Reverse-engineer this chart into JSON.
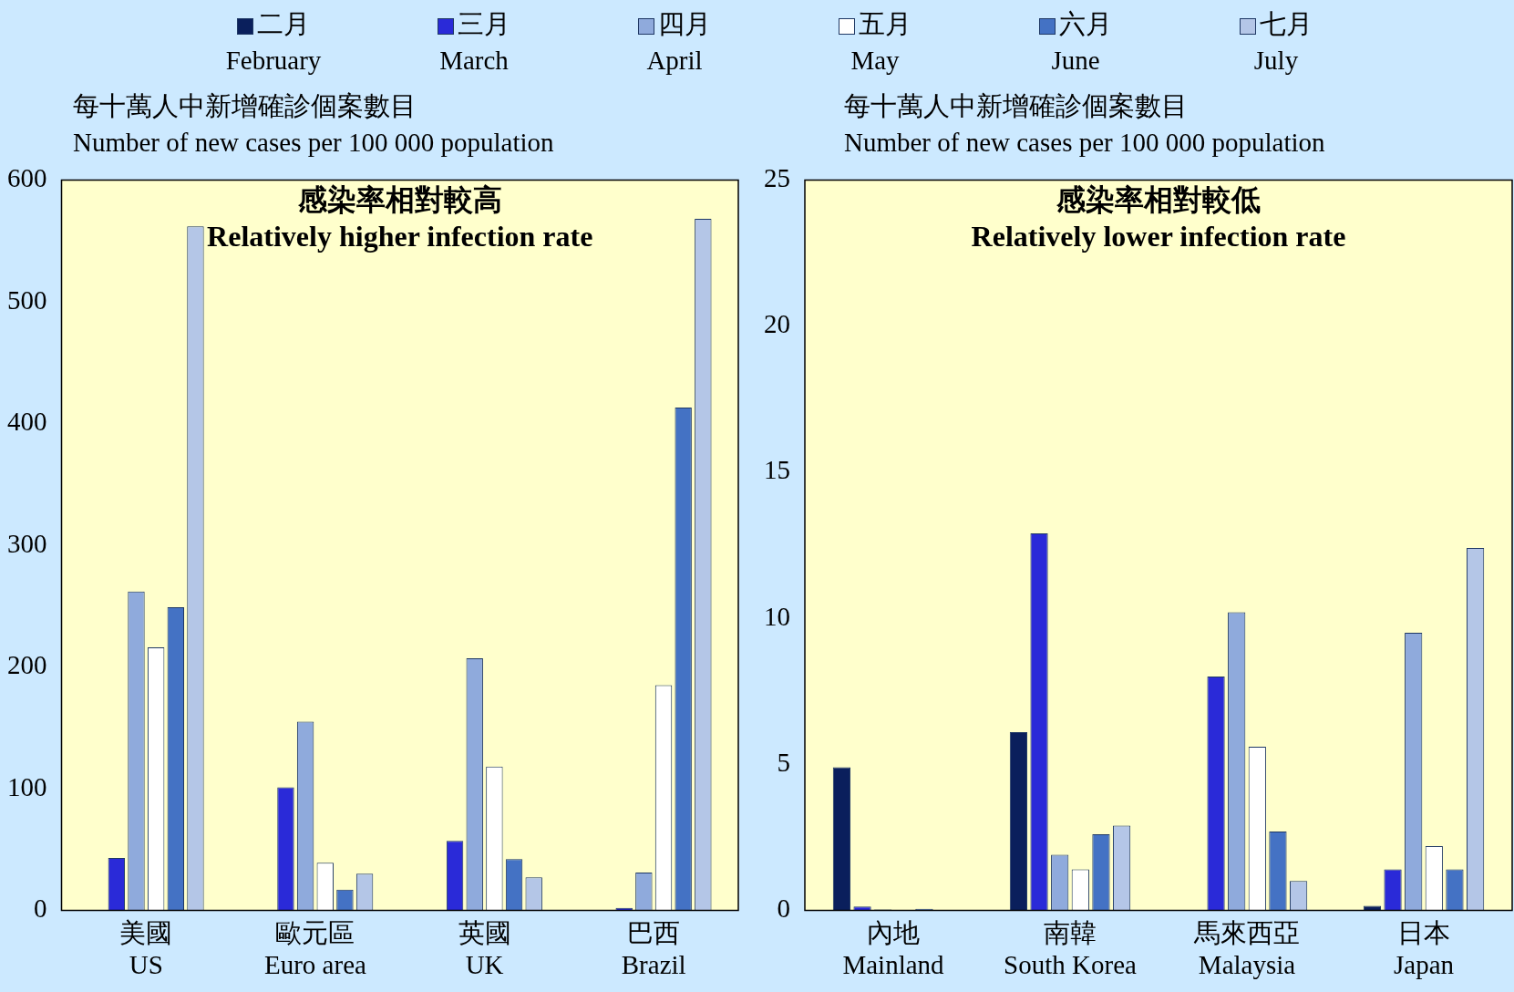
{
  "chart_data": [
    {
      "type": "bar",
      "title": "感染率相對較高\nRelatively higher infection rate",
      "ylabel": "每十萬人中新增確診個案數目\nNumber of new cases per 100 000 population",
      "categories": [
        "美國\nUS",
        "歐元區\nEuro area",
        "英國\nUK",
        "巴西\nBrazil"
      ],
      "ylim": [
        0,
        600
      ],
      "yticks": [
        0,
        100,
        200,
        300,
        400,
        500,
        600
      ],
      "grid": false,
      "legend": "top",
      "series": [
        {
          "name": "二月\nFebruary",
          "color": "#0a1f5c",
          "values": [
            0,
            0,
            0,
            0
          ]
        },
        {
          "name": "三月\nMarch",
          "color": "#2a2ad8",
          "values": [
            43,
            101,
            57,
            2
          ]
        },
        {
          "name": "四月\nApril",
          "color": "#8faadc",
          "values": [
            262,
            155,
            207,
            31
          ]
        },
        {
          "name": "五月\nMay",
          "color": "#ffffff",
          "values": [
            216,
            39,
            118,
            185
          ]
        },
        {
          "name": "六月\nJune",
          "color": "#4472c4",
          "values": [
            249,
            17,
            42,
            413
          ]
        },
        {
          "name": "七月\nJuly",
          "color": "#b4c6e7",
          "values": [
            562,
            30,
            27,
            568
          ]
        }
      ]
    },
    {
      "type": "bar",
      "title": "感染率相對較低\nRelatively lower infection rate",
      "ylabel": "每十萬人中新增確診個案數目\nNumber of new cases per 100 000 population",
      "categories": [
        "內地\nMainland",
        "南韓\nSouth Korea",
        "馬來西亞\nMalaysia",
        "日本\nJapan"
      ],
      "ylim": [
        0,
        25
      ],
      "yticks": [
        0,
        5,
        10,
        15,
        20,
        25
      ],
      "grid": false,
      "legend": false,
      "series": [
        {
          "color": "#0a1f5c",
          "values": [
            4.9,
            6.1,
            null,
            0.15
          ]
        },
        {
          "color": "#2a2ad8",
          "values": [
            0.13,
            12.9,
            8.0,
            1.4
          ]
        },
        {
          "color": "#8faadc",
          "values": [
            0.03,
            1.9,
            10.2,
            9.5
          ]
        },
        {
          "color": "#ffffff",
          "values": [
            null,
            1.4,
            5.6,
            2.2
          ]
        },
        {
          "color": "#4472c4",
          "values": [
            0.05,
            2.6,
            2.7,
            1.4
          ]
        },
        {
          "color": "#b4c6e7",
          "values": [
            null,
            2.9,
            1.0,
            12.4
          ]
        }
      ]
    }
  ]
}
